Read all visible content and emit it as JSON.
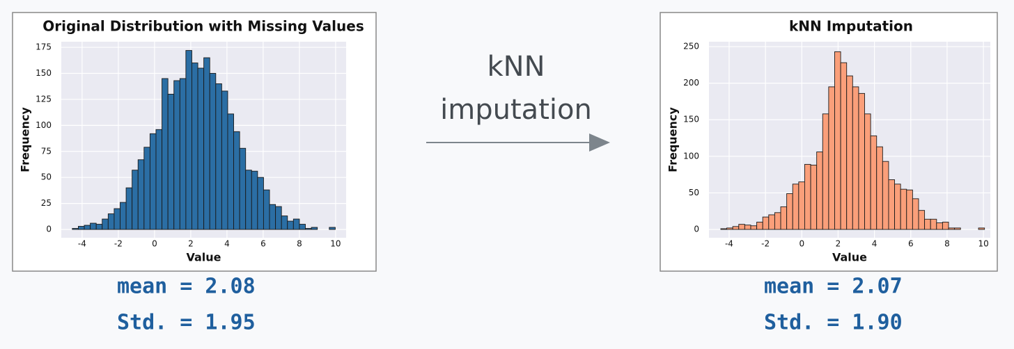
{
  "chart_data": [
    {
      "type": "histogram",
      "title": "Original Distribution with Missing Values",
      "xlabel": "Value",
      "ylabel": "Frequency",
      "color": "#2b6ea4",
      "grid": true,
      "bins": [
        -4.54,
        -4.21,
        -3.88,
        -3.55,
        -3.22,
        -2.89,
        -2.56,
        -2.23,
        -1.9,
        -1.57,
        -1.24,
        -0.91,
        -0.58,
        -0.25,
        0.08,
        0.41,
        0.74,
        1.07,
        1.4,
        1.73,
        2.06,
        2.39,
        2.72,
        3.05,
        3.38,
        3.71,
        4.04,
        4.37,
        4.7,
        5.03,
        5.36,
        5.69,
        6.02,
        6.35,
        6.68,
        7.01,
        7.34,
        7.67,
        8,
        8.33,
        8.66,
        8.99,
        9.32,
        9.65,
        9.98
      ],
      "values": [
        1,
        3,
        4,
        6,
        5,
        10,
        15,
        20,
        26,
        40,
        57,
        67,
        79,
        92,
        96,
        145,
        130,
        143,
        145,
        172,
        160,
        155,
        165,
        150,
        140,
        133,
        111,
        94,
        78,
        57,
        56,
        50,
        38,
        24,
        22,
        13,
        8,
        10,
        5,
        1,
        2,
        0,
        0,
        2
      ],
      "xlim": [
        -5.15,
        10.58
      ],
      "xticks": [
        -4,
        -2,
        0,
        2,
        4,
        6,
        8,
        10
      ],
      "ylim": [
        -8,
        180.4
      ],
      "yticks": [
        0,
        25,
        50,
        75,
        100,
        125,
        150,
        175
      ],
      "annotations": [
        "mean = 2.08",
        "Std. = 1.95"
      ]
    },
    {
      "type": "histogram",
      "title": "kNN Imputation",
      "xlabel": "Value",
      "ylabel": "Frequency",
      "color": "#fa9f7a",
      "grid": true,
      "bins": [
        -4.46,
        -4.13,
        -3.8,
        -3.47,
        -3.14,
        -2.81,
        -2.48,
        -2.15,
        -1.82,
        -1.49,
        -1.16,
        -0.83,
        -0.5,
        -0.17,
        0.16,
        0.49,
        0.82,
        1.15,
        1.48,
        1.81,
        2.14,
        2.47,
        2.8,
        3.13,
        3.46,
        3.79,
        4.12,
        4.45,
        4.78,
        5.11,
        5.44,
        5.77,
        6.1,
        6.43,
        6.76,
        7.09,
        7.42,
        7.75,
        8.08,
        8.41,
        8.74,
        9.07,
        9.4,
        9.73,
        10.06
      ],
      "values": [
        1,
        2,
        4,
        7,
        6,
        5,
        10,
        17,
        20,
        23,
        31,
        49,
        62,
        65,
        89,
        88,
        106,
        158,
        195,
        243,
        228,
        210,
        195,
        186,
        158,
        128,
        113,
        93,
        68,
        62,
        55,
        54,
        42,
        26,
        14,
        14,
        9,
        10,
        2,
        2,
        0,
        0,
        0,
        2
      ],
      "xlim": [
        -5.11,
        10.38
      ],
      "xticks": [
        -4,
        -2,
        0,
        2,
        4,
        6,
        8,
        10
      ],
      "ylim": [
        -11.4,
        256.7
      ],
      "yticks": [
        0,
        50,
        100,
        150,
        200,
        250
      ],
      "annotations": [
        "mean = 2.07",
        "Std. = 1.90"
      ]
    }
  ],
  "arrow_label": [
    "kNN",
    "imputation"
  ]
}
